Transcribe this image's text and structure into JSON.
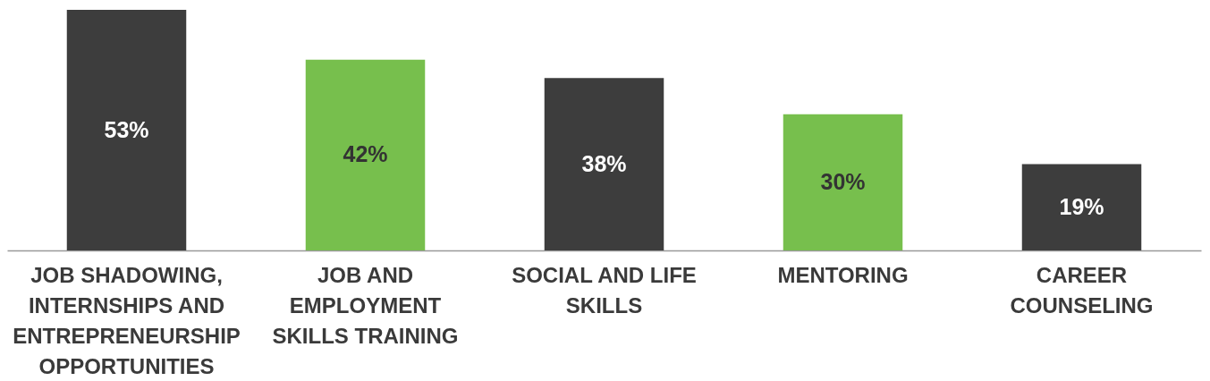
{
  "chart_data": {
    "type": "bar",
    "categories": [
      "JOB SHADOWING, INTERNSHIPS AND ENTREPRENEURSHIP OPPORTUNITIES",
      "JOB AND EMPLOYMENT SKILLS TRAINING",
      "SOCIAL AND LIFE SKILLS",
      "MENTORING",
      "CAREER COUNSELING"
    ],
    "values": [
      53,
      42,
      38,
      30,
      19
    ],
    "colors": [
      "#3d3d3d",
      "#77bf4d",
      "#3d3d3d",
      "#77bf4d",
      "#3d3d3d"
    ],
    "value_labels": [
      "53%",
      "42%",
      "38%",
      "30%",
      "19%"
    ],
    "grid": false
  }
}
